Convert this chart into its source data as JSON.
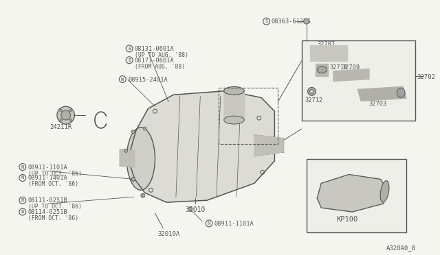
{
  "bg_color": "#f5f5f0",
  "line_color": "#555555",
  "diagram_ref": "A320A0_8",
  "parts": {
    "main_assembly": "32010",
    "gasket": "32010A",
    "nut_b1": "08131-0601A",
    "nut_b1_note": "(UP TO AUG. '88)",
    "nut_b2": "08171-0601A",
    "nut_b2_note": "(FROM AUG. '88)",
    "washer": "08915-2401A",
    "bolt_s": "08363-6122G",
    "sensor": "24211R",
    "nut_n1": "08911-1101A",
    "nut_n1_note": "(UP TO OCT. '86)",
    "nut_n2": "08911-1401A",
    "nut_n2_note": "(FROM OCT. '86)",
    "bolt_b3": "08111-0251B",
    "bolt_b3_note": "(UP TO OCT. '86)",
    "bolt_b4": "08114-0251B",
    "bolt_b4_note": "(FROM OCT. '86)",
    "nut_n3": "08911-1101A",
    "speedometer_gear": "32702",
    "gear_sub1": "32703",
    "gear_sub2": "32707",
    "gear_sub3": "32709",
    "gear_sub4": "32710",
    "gear_sub5": "32712",
    "kp_ref": "KP100"
  }
}
